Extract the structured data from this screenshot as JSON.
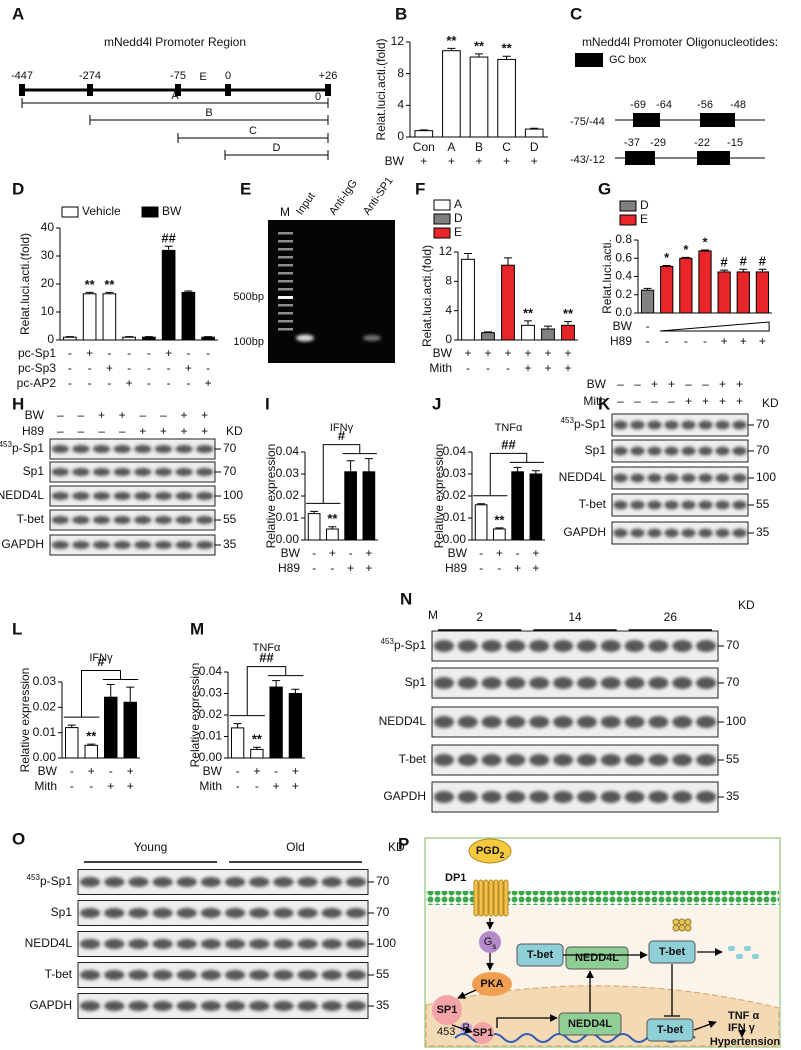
{
  "promoter_map": {
    "panel": "A",
    "title": "mNedd4l Promoter Region",
    "sites": [
      "-447",
      "-274",
      "-75",
      "0",
      "+26"
    ],
    "element": "E",
    "fragments": [
      "A",
      "B",
      "C",
      "D"
    ],
    "end_mark": "0"
  },
  "oligos": {
    "panel": "C",
    "title": "mNedd4l Promoter Oligonucleotides:",
    "legend": "GC box",
    "rows": [
      {
        "name": "-75/-44",
        "sites": [
          "-69",
          "-64",
          "-56",
          "-48"
        ]
      },
      {
        "name": "-43/-12",
        "sites": [
          "-37",
          "-29",
          "-22",
          "-15"
        ]
      }
    ]
  },
  "gel": {
    "panel": "E",
    "lanes": [
      "M",
      "Input",
      "Anti-IgG",
      "Anti-SP1"
    ],
    "markers": [
      "500bp",
      "100bp"
    ]
  },
  "chart_data": [
    {
      "type": "bar",
      "panel": "B",
      "ylabel": "Relat.luci.acti.(fold)",
      "ylim": [
        0,
        12
      ],
      "yticks": [
        0,
        4,
        8,
        12
      ],
      "categories": [
        "Con",
        "A",
        "B",
        "C",
        "D"
      ],
      "series": [
        {
          "color": "#ffffff",
          "values": [
            0.8,
            10.9,
            10.1,
            9.8,
            1.0
          ],
          "errors": [
            0.1,
            0.3,
            0.4,
            0.4,
            0.1
          ],
          "sig": [
            null,
            "**",
            "**",
            "**",
            null
          ]
        }
      ],
      "conditions": [
        {
          "label": "BW",
          "marks": [
            "+",
            "+",
            "+",
            "+",
            "+"
          ]
        }
      ]
    },
    {
      "type": "bar",
      "panel": "D",
      "ylabel": "Relat.luci.acti.(fold)",
      "ylim": [
        0,
        40
      ],
      "yticks": [
        0,
        10,
        20,
        30,
        40
      ],
      "series": [
        {
          "name": "Vehicle",
          "color": "#ffffff",
          "values": [
            1.0,
            16.5,
            16.5,
            1.0,
            null,
            null,
            null,
            null
          ],
          "errors": [
            0.2,
            0.5,
            0.5,
            0.2,
            null,
            null,
            null,
            null
          ],
          "sig": [
            null,
            "**",
            "**",
            null,
            null,
            null,
            null,
            null
          ]
        },
        {
          "name": "BW",
          "color": "#000000",
          "values": [
            null,
            null,
            null,
            null,
            1.0,
            32,
            17,
            1.0
          ],
          "errors": [
            null,
            null,
            null,
            null,
            0.2,
            1.5,
            0.5,
            0.2
          ],
          "sig": [
            null,
            null,
            null,
            null,
            null,
            "##",
            null,
            null
          ]
        }
      ],
      "conditions": [
        {
          "label": "pc-Sp1",
          "marks": [
            "-",
            "+",
            "-",
            "-",
            "-",
            "+",
            "-",
            "-"
          ]
        },
        {
          "label": "pc-Sp3",
          "marks": [
            "-",
            "-",
            "+",
            "-",
            "-",
            "-",
            "+",
            "-"
          ]
        },
        {
          "label": "pc-AP2",
          "marks": [
            "-",
            "-",
            "-",
            "+",
            "-",
            "-",
            "-",
            "+"
          ]
        }
      ]
    },
    {
      "type": "bar",
      "panel": "F",
      "ylabel": "Relat.luci.acti.(fold)",
      "ylim": [
        0,
        12
      ],
      "yticks": [
        0,
        4,
        8,
        12
      ],
      "series": [
        {
          "name": "A",
          "color": "#ffffff",
          "values": [
            11,
            null,
            null,
            2,
            null,
            null
          ],
          "errors": [
            0.8,
            null,
            null,
            0.6,
            null,
            null
          ],
          "sig": [
            null,
            null,
            null,
            "**",
            null,
            null
          ]
        },
        {
          "name": "D",
          "color": "#808080",
          "values": [
            null,
            1,
            null,
            null,
            1.5,
            null
          ],
          "errors": [
            null,
            0.1,
            null,
            null,
            0.4,
            null
          ]
        },
        {
          "name": "E",
          "color": "#e8262a",
          "values": [
            null,
            null,
            10.2,
            null,
            null,
            2
          ],
          "errors": [
            null,
            null,
            1.0,
            null,
            null,
            0.5
          ],
          "sig": [
            null,
            null,
            null,
            null,
            null,
            "**"
          ]
        }
      ],
      "conditions": [
        {
          "label": "BW",
          "marks": [
            "+",
            "+",
            "+",
            "+",
            "+",
            "+"
          ]
        },
        {
          "label": "Mith",
          "marks": [
            "-",
            "-",
            "-",
            "+",
            "+",
            "+"
          ]
        }
      ]
    },
    {
      "type": "bar",
      "panel": "G",
      "ylabel": "Relat.luci.acti.",
      "ylim": [
        0,
        0.8
      ],
      "yticks": [
        {
          "value": 0,
          "label": "0.0"
        },
        0.2,
        0.4,
        0.6,
        0.8
      ],
      "series": [
        {
          "name": "D",
          "color": "#808080",
          "values": [
            0.25,
            null,
            null,
            null,
            null,
            null,
            null
          ],
          "errors": [
            0.02,
            null,
            null,
            null,
            null,
            null,
            null
          ]
        },
        {
          "name": "E",
          "color": "#e8262a",
          "values": [
            null,
            0.51,
            0.6,
            0.68,
            0.45,
            0.45,
            0.45
          ],
          "errors": [
            null,
            0.01,
            0.01,
            0.01,
            0.02,
            0.03,
            0.03
          ],
          "sig": [
            null,
            "*",
            "*",
            "*",
            "#",
            "#",
            "#"
          ]
        }
      ],
      "conditions": [
        {
          "label": "BW",
          "marks": [
            "-",
            null,
            null,
            null,
            null,
            null,
            null
          ]
        },
        {
          "label": "H89",
          "marks": [
            "-",
            "-",
            "-",
            "-",
            "+",
            "+",
            "+"
          ]
        }
      ]
    },
    {
      "type": "bar",
      "panel": "I",
      "title": "IFNγ",
      "ylabel": "Relative expression",
      "ylim": [
        0,
        0.04
      ],
      "yticks": [
        {
          "value": 0,
          "label": "0.00"
        },
        0.01,
        0.02,
        0.03,
        0.04
      ],
      "bracket": "#",
      "series": [
        {
          "color": "#ffffff",
          "values": [
            0.012,
            0.005,
            null,
            null
          ],
          "errors": [
            0.001,
            0.001,
            null,
            null
          ],
          "sig": [
            null,
            "**",
            null,
            null
          ]
        },
        {
          "color": "#000000",
          "values": [
            null,
            null,
            0.031,
            0.031
          ],
          "errors": [
            null,
            null,
            0.005,
            0.006
          ]
        }
      ],
      "conditions": [
        {
          "label": "BW",
          "marks": [
            "-",
            "+",
            "-",
            "+"
          ]
        },
        {
          "label": "H89",
          "marks": [
            "-",
            "-",
            "+",
            "+"
          ]
        }
      ]
    },
    {
      "type": "bar",
      "panel": "J",
      "title": "TNFα",
      "ylabel": "Relative expression",
      "ylim": [
        0,
        0.04
      ],
      "yticks": [
        {
          "value": 0,
          "label": "0.00"
        },
        0.01,
        0.02,
        0.03,
        0.04
      ],
      "bracket": "##",
      "series": [
        {
          "color": "#ffffff",
          "values": [
            0.016,
            0.005,
            null,
            null
          ],
          "errors": [
            0.0005,
            0.0005,
            null,
            null
          ],
          "sig": [
            null,
            "**",
            null,
            null
          ]
        },
        {
          "color": "#000000",
          "values": [
            null,
            null,
            0.031,
            0.03
          ],
          "errors": [
            null,
            null,
            0.002,
            0.0015
          ]
        }
      ],
      "conditions": [
        {
          "label": "BW",
          "marks": [
            "-",
            "+",
            "-",
            "+"
          ]
        },
        {
          "label": "H89",
          "marks": [
            "-",
            "-",
            "+",
            "+"
          ]
        }
      ]
    },
    {
      "type": "bar",
      "panel": "L",
      "title": "IFNγ",
      "ylabel": "Relative expression",
      "ylim": [
        0,
        0.03
      ],
      "yticks": [
        {
          "value": 0,
          "label": "0.00"
        },
        0.01,
        0.02,
        0.03
      ],
      "bracket": "#",
      "series": [
        {
          "color": "#ffffff",
          "values": [
            0.012,
            0.005,
            null,
            null
          ],
          "errors": [
            0.001,
            0.0005,
            null,
            null
          ],
          "sig": [
            null,
            "**",
            null,
            null
          ]
        },
        {
          "color": "#000000",
          "values": [
            null,
            null,
            0.024,
            0.022
          ],
          "errors": [
            null,
            null,
            0.005,
            0.006
          ]
        }
      ],
      "conditions": [
        {
          "label": "BW",
          "marks": [
            "-",
            "+",
            "-",
            "+"
          ]
        },
        {
          "label": "Mith",
          "marks": [
            "-",
            "-",
            "+",
            "+"
          ]
        }
      ]
    },
    {
      "type": "bar",
      "panel": "M",
      "title": "TNFα",
      "ylabel": "Relative expression",
      "ylim": [
        0,
        0.04
      ],
      "yticks": [
        {
          "value": 0,
          "label": "0.00"
        },
        0.01,
        0.02,
        0.03,
        0.04
      ],
      "bracket": "##",
      "series": [
        {
          "color": "#ffffff",
          "values": [
            0.014,
            0.004,
            null,
            null
          ],
          "errors": [
            0.002,
            0.001,
            null,
            null
          ],
          "sig": [
            null,
            "**",
            null,
            null
          ]
        },
        {
          "color": "#000000",
          "values": [
            null,
            null,
            0.033,
            0.03
          ],
          "errors": [
            null,
            null,
            0.003,
            0.002
          ]
        }
      ],
      "conditions": [
        {
          "label": "BW",
          "marks": [
            "-",
            "+",
            "-",
            "+"
          ]
        },
        {
          "label": "Mith",
          "marks": [
            "-",
            "-",
            "+",
            "+"
          ]
        }
      ]
    }
  ],
  "blots": [
    {
      "panel": "H",
      "kd_label": "KD",
      "conditions": [
        {
          "label": "BW",
          "marks": [
            "–",
            "–",
            "+",
            "+",
            "–",
            "–",
            "+",
            "+"
          ]
        },
        {
          "label": "H89",
          "marks": [
            "–",
            "–",
            "–",
            "–",
            "+",
            "+",
            "+",
            "+"
          ]
        }
      ],
      "rows": [
        {
          "label": {
            "sup": "453",
            "text": "p-Sp1"
          },
          "kd": 70
        },
        {
          "label": "Sp1",
          "kd": 70
        },
        {
          "label": "NEDD4L",
          "kd": 100
        },
        {
          "label": "T-bet",
          "kd": 55
        },
        {
          "label": "GAPDH",
          "kd": 35
        }
      ]
    },
    {
      "panel": "K",
      "kd_label": "KD",
      "conditions": [
        {
          "label": "BW",
          "marks": [
            "–",
            "–",
            "+",
            "+",
            "–",
            "–",
            "+",
            "+"
          ]
        },
        {
          "label": "Mith",
          "marks": [
            "–",
            "–",
            "–",
            "–",
            "+",
            "+",
            "+",
            "+"
          ]
        }
      ],
      "rows": [
        {
          "label": {
            "sup": "453",
            "text": "p-Sp1"
          },
          "kd": 70
        },
        {
          "label": "Sp1",
          "kd": 70
        },
        {
          "label": "NEDD4L",
          "kd": 100
        },
        {
          "label": "T-bet",
          "kd": 55
        },
        {
          "label": "GAPDH",
          "kd": 35
        }
      ]
    },
    {
      "panel": "N",
      "kd_label": "KD",
      "lane_label": "M",
      "groups": [
        "2",
        "14",
        "26"
      ],
      "rows": [
        {
          "label": {
            "sup": "453",
            "text": "p-Sp1"
          },
          "kd": 70
        },
        {
          "label": "Sp1",
          "kd": 70
        },
        {
          "label": "NEDD4L",
          "kd": 100
        },
        {
          "label": "T-bet",
          "kd": 55
        },
        {
          "label": "GAPDH",
          "kd": 35
        }
      ]
    },
    {
      "panel": "O",
      "kd_label": "KD",
      "groups": [
        "Young",
        "Old"
      ],
      "rows": [
        {
          "label": {
            "sup": "453",
            "text": "p-Sp1"
          },
          "kd": 70
        },
        {
          "label": "Sp1",
          "kd": 70
        },
        {
          "label": "NEDD4L",
          "kd": 100
        },
        {
          "label": "T-bet",
          "kd": 55
        },
        {
          "label": "GAPDH",
          "kd": 35
        }
      ]
    }
  ],
  "pathway": {
    "panel": "P",
    "ligand": {
      "text": "PGD",
      "sub": "2"
    },
    "receptor": "DP1",
    "g_protein": {
      "text": "G",
      "sub": "s"
    },
    "kinase": "PKA",
    "sp1_cytoplasm": "SP1",
    "phospho_site": "453",
    "phospho": "P",
    "sp1_nucleus": "SP1",
    "tbet_left": "T-bet",
    "nedd4l_cytoplasm": "NEDD4L",
    "tbet_right": "T-bet",
    "nedd4l_nucleus": "NEDD4L",
    "tbet_nucleus": "T-bet",
    "cytokine_1": "TNF α",
    "cytokine_2": "IFN γ",
    "outcome": "Hypertension"
  }
}
